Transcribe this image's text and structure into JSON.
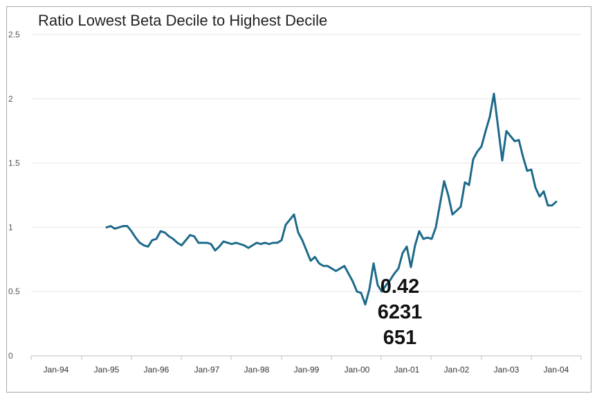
{
  "chart_data": {
    "type": "line",
    "title": "Ratio Lowest Beta Decile to Highest Decile",
    "xlabel": "",
    "ylabel": "",
    "ylim": [
      0,
      2.5
    ],
    "y_ticks": [
      "0",
      "0.5",
      "1",
      "1.5",
      "2",
      "2.5"
    ],
    "x_ticks": [
      "Jan-94",
      "Jan-95",
      "Jan-96",
      "Jan-97",
      "Jan-98",
      "Jan-99",
      "Jan-00",
      "Jan-01",
      "Jan-02",
      "Jan-03",
      "Jan-04"
    ],
    "grid": true,
    "line_color": "#1d6a8a",
    "series": [
      {
        "values": [
          [
            "1995-01",
            1.0
          ],
          [
            "1995-02",
            1.01
          ],
          [
            "1995-03",
            0.99
          ],
          [
            "1995-04",
            1.0
          ],
          [
            "1995-05",
            1.01
          ],
          [
            "1995-06",
            1.01
          ],
          [
            "1995-07",
            0.97
          ],
          [
            "1995-08",
            0.92
          ],
          [
            "1995-09",
            0.88
          ],
          [
            "1995-10",
            0.86
          ],
          [
            "1995-11",
            0.85
          ],
          [
            "1995-12",
            0.9
          ],
          [
            "1996-01",
            0.91
          ],
          [
            "1996-02",
            0.97
          ],
          [
            "1996-03",
            0.96
          ],
          [
            "1996-04",
            0.93
          ],
          [
            "1996-05",
            0.91
          ],
          [
            "1996-06",
            0.88
          ],
          [
            "1996-07",
            0.86
          ],
          [
            "1996-08",
            0.9
          ],
          [
            "1996-09",
            0.94
          ],
          [
            "1996-10",
            0.93
          ],
          [
            "1996-11",
            0.88
          ],
          [
            "1996-12",
            0.88
          ],
          [
            "1997-01",
            0.88
          ],
          [
            "1997-02",
            0.87
          ],
          [
            "1997-03",
            0.82
          ],
          [
            "1997-04",
            0.85
          ],
          [
            "1997-05",
            0.89
          ],
          [
            "1997-06",
            0.88
          ],
          [
            "1997-07",
            0.87
          ],
          [
            "1997-08",
            0.88
          ],
          [
            "1997-09",
            0.87
          ],
          [
            "1997-10",
            0.86
          ],
          [
            "1997-11",
            0.84
          ],
          [
            "1997-12",
            0.86
          ],
          [
            "1998-01",
            0.88
          ],
          [
            "1998-02",
            0.87
          ],
          [
            "1998-03",
            0.88
          ],
          [
            "1998-04",
            0.87
          ],
          [
            "1998-05",
            0.88
          ],
          [
            "1998-06",
            0.88
          ],
          [
            "1998-07",
            0.9
          ],
          [
            "1998-08",
            1.02
          ],
          [
            "1998-09",
            1.06
          ],
          [
            "1998-10",
            1.1
          ],
          [
            "1998-11",
            0.96
          ],
          [
            "1998-12",
            0.9
          ],
          [
            "1999-01",
            0.82
          ],
          [
            "1999-02",
            0.74
          ],
          [
            "1999-03",
            0.77
          ],
          [
            "1999-04",
            0.72
          ],
          [
            "1999-05",
            0.7
          ],
          [
            "1999-06",
            0.7
          ],
          [
            "1999-07",
            0.68
          ],
          [
            "1999-08",
            0.66
          ],
          [
            "1999-09",
            0.68
          ],
          [
            "1999-10",
            0.7
          ],
          [
            "1999-11",
            0.64
          ],
          [
            "1999-12",
            0.58
          ],
          [
            "2000-01",
            0.5
          ],
          [
            "2000-02",
            0.49
          ],
          [
            "2000-03",
            0.4
          ],
          [
            "2000-04",
            0.52
          ],
          [
            "2000-05",
            0.72
          ],
          [
            "2000-06",
            0.55
          ],
          [
            "2000-07",
            0.5
          ],
          [
            "2000-08",
            0.55
          ],
          [
            "2000-09",
            0.59
          ],
          [
            "2000-10",
            0.64
          ],
          [
            "2000-11",
            0.68
          ],
          [
            "2000-12",
            0.8
          ],
          [
            "2001-01",
            0.85
          ],
          [
            "2001-02",
            0.69
          ],
          [
            "2001-03",
            0.86
          ],
          [
            "2001-04",
            0.97
          ],
          [
            "2001-05",
            0.91
          ],
          [
            "2001-06",
            0.92
          ],
          [
            "2001-07",
            0.91
          ],
          [
            "2001-08",
            1.0
          ],
          [
            "2001-09",
            1.18
          ],
          [
            "2001-10",
            1.36
          ],
          [
            "2001-11",
            1.25
          ],
          [
            "2001-12",
            1.1
          ],
          [
            "2002-01",
            1.13
          ],
          [
            "2002-02",
            1.16
          ],
          [
            "2002-03",
            1.35
          ],
          [
            "2002-04",
            1.33
          ],
          [
            "2002-05",
            1.53
          ],
          [
            "2002-06",
            1.59
          ],
          [
            "2002-07",
            1.63
          ],
          [
            "2002-08",
            1.75
          ],
          [
            "2002-09",
            1.86
          ],
          [
            "2002-10",
            2.04
          ],
          [
            "2002-11",
            1.78
          ],
          [
            "2002-12",
            1.52
          ],
          [
            "2003-01",
            1.75
          ],
          [
            "2003-02",
            1.71
          ],
          [
            "2003-03",
            1.67
          ],
          [
            "2003-04",
            1.68
          ],
          [
            "2003-05",
            1.55
          ],
          [
            "2003-06",
            1.44
          ],
          [
            "2003-07",
            1.45
          ],
          [
            "2003-08",
            1.31
          ],
          [
            "2003-09",
            1.24
          ],
          [
            "2003-10",
            1.28
          ],
          [
            "2003-11",
            1.17
          ],
          [
            "2003-12",
            1.17
          ],
          [
            "2004-01",
            1.2
          ]
        ]
      }
    ],
    "annotation": [
      "0.42",
      "6231",
      "651"
    ]
  }
}
